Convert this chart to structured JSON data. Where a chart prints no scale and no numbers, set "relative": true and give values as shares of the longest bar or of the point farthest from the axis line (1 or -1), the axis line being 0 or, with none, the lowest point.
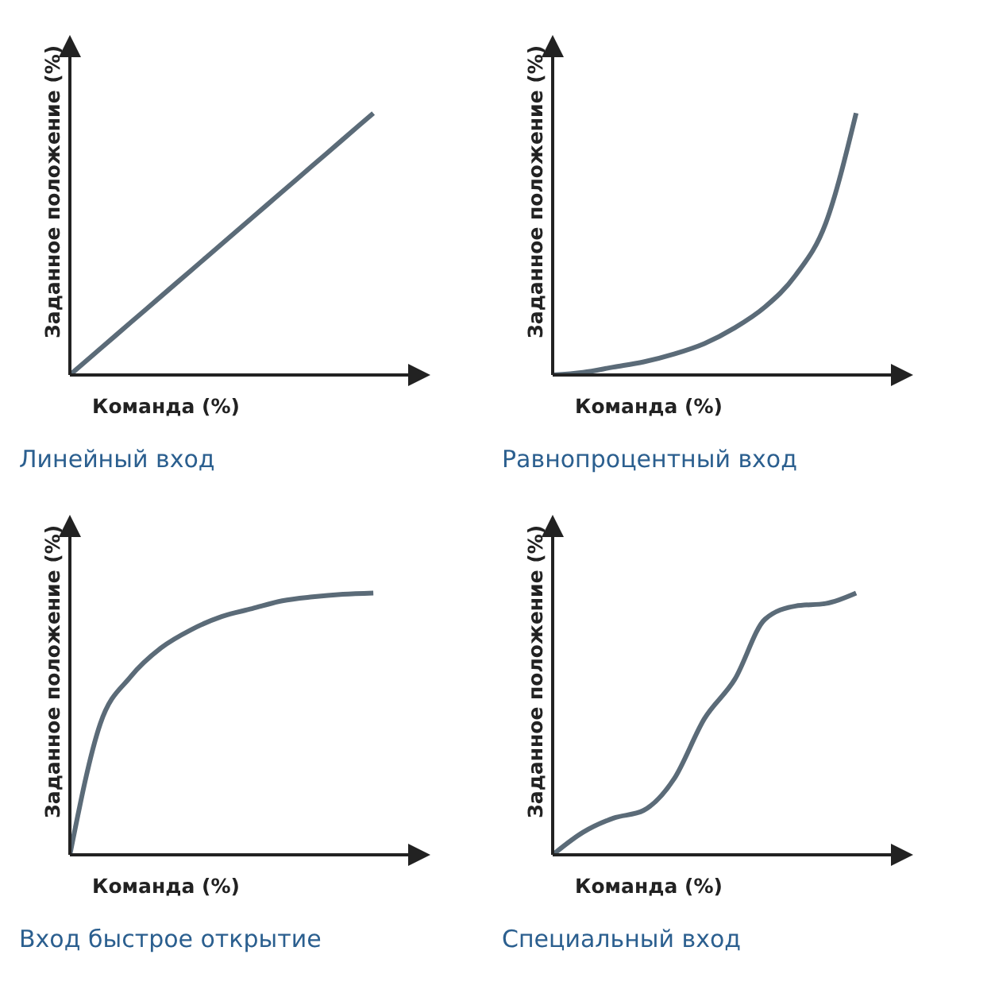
{
  "chart_data": [
    {
      "type": "line",
      "title": "Линейный вход",
      "xlabel": "Команда (%)",
      "ylabel": "Заданное положение (%)",
      "relative": true,
      "marker": "none",
      "color": "#5b6b78",
      "categories": [
        null,
        null,
        null,
        null,
        null,
        null,
        null,
        null,
        null,
        null,
        null
      ],
      "values": [
        0,
        0.1,
        0.2,
        0.3,
        0.4,
        0.5,
        0.6,
        0.7,
        0.8,
        0.9,
        1
      ]
    },
    {
      "type": "line",
      "title": "Равнопроцентный вход",
      "xlabel": "Команда (%)",
      "ylabel": "Заданное положение (%)",
      "relative": true,
      "marker": "none",
      "color": "#5b6b78",
      "categories": [
        null,
        null,
        null,
        null,
        null,
        null,
        null,
        null,
        null,
        null,
        null
      ],
      "values": [
        0,
        0.01,
        0.03,
        0.05,
        0.08,
        0.12,
        0.18,
        0.26,
        0.38,
        0.58,
        1
      ]
    },
    {
      "type": "line",
      "title": "Вход быстрое открытие",
      "xlabel": "Команда (%)",
      "ylabel": "Заданное положение (%)",
      "relative": true,
      "marker": "none",
      "color": "#5b6b78",
      "categories": [
        null,
        null,
        null,
        null,
        null,
        null,
        null,
        null,
        null,
        null,
        null
      ],
      "values": [
        0,
        0.5,
        0.68,
        0.79,
        0.86,
        0.91,
        0.94,
        0.97,
        0.985,
        0.995,
        1
      ]
    },
    {
      "type": "line",
      "title": "Специальный вход",
      "xlabel": "Команда (%)",
      "ylabel": "Заданное положение (%)",
      "relative": true,
      "marker": "none",
      "color": "#5b6b78",
      "categories": [
        null,
        null,
        null,
        null,
        null,
        null,
        null,
        null,
        null,
        null,
        null
      ],
      "values": [
        0,
        0.086,
        0.14,
        0.17,
        0.29,
        0.52,
        0.67,
        0.9,
        0.95,
        0.96,
        1
      ]
    }
  ]
}
